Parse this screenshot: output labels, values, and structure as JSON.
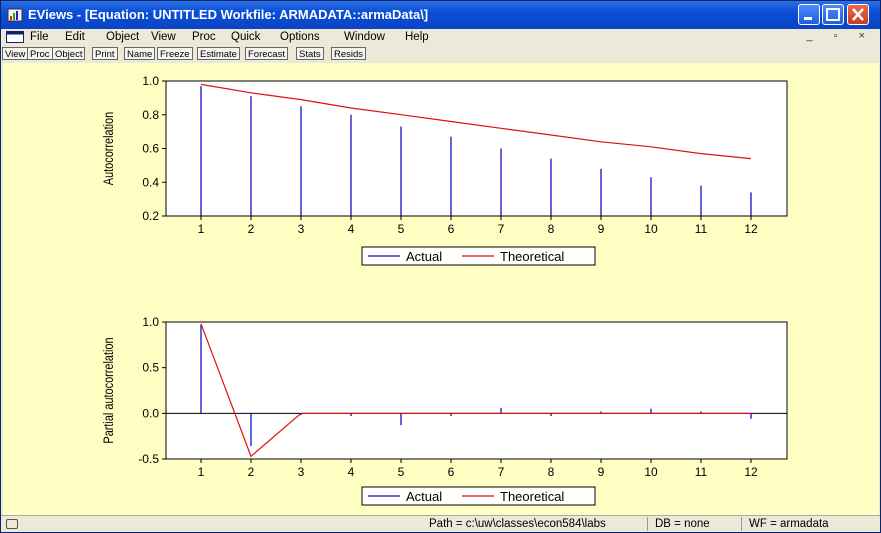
{
  "window": {
    "title": "EViews - [Equation: UNTITLED   Workfile: ARMADATA::armaData\\]"
  },
  "menubar": {
    "items": [
      "File",
      "Edit",
      "Object",
      "View",
      "Proc",
      "Quick",
      "Options",
      "Window",
      "Help"
    ],
    "mdi_controls": "_ ▫ ×"
  },
  "toolbar": {
    "buttons": [
      "View",
      "Proc",
      "Object",
      "Print",
      "Name",
      "Freeze",
      "Estimate",
      "Forecast",
      "Stats",
      "Resids"
    ]
  },
  "legend": {
    "actual": "Actual",
    "theoretical": "Theoretical"
  },
  "colors": {
    "actual": "#1010c8",
    "theoretical": "#e01010",
    "background": "#ffffc4"
  },
  "chart_data": [
    {
      "type": "bar",
      "ylabel": "Autocorrelation",
      "categories": [
        1,
        2,
        3,
        4,
        5,
        6,
        7,
        8,
        9,
        10,
        11,
        12
      ],
      "ylim": [
        0.2,
        1.0
      ],
      "yticks": [
        "0.2",
        "0.4",
        "0.6",
        "0.8",
        "1.0"
      ],
      "series": [
        {
          "name": "Actual",
          "values": [
            0.97,
            0.91,
            0.85,
            0.8,
            0.73,
            0.67,
            0.6,
            0.54,
            0.48,
            0.43,
            0.38,
            0.34
          ]
        },
        {
          "name": "Theoretical",
          "values": [
            0.98,
            0.93,
            0.89,
            0.84,
            0.8,
            0.76,
            0.72,
            0.68,
            0.64,
            0.61,
            0.57,
            0.54
          ]
        }
      ],
      "legend_position": "bottom"
    },
    {
      "type": "bar",
      "ylabel": "Partial autocorrelation",
      "categories": [
        1,
        2,
        3,
        4,
        5,
        6,
        7,
        8,
        9,
        10,
        11,
        12
      ],
      "ylim": [
        -0.5,
        1.0
      ],
      "yticks": [
        "-0.5",
        "0.0",
        "0.5",
        "1.0"
      ],
      "series": [
        {
          "name": "Actual",
          "values": [
            0.97,
            -0.36,
            -0.02,
            -0.03,
            -0.13,
            -0.03,
            0.06,
            -0.03,
            0.02,
            0.05,
            0.02,
            -0.06
          ]
        },
        {
          "name": "Theoretical",
          "values": [
            0.98,
            -0.47,
            0.0,
            0.0,
            0.0,
            0.0,
            0.0,
            0.0,
            0.0,
            0.0,
            0.0,
            0.0
          ]
        }
      ],
      "legend_position": "bottom"
    }
  ],
  "statusbar": {
    "path": "Path = c:\\uw\\classes\\econ584\\labs",
    "db": "DB = none",
    "wf": "WF = armadata"
  }
}
